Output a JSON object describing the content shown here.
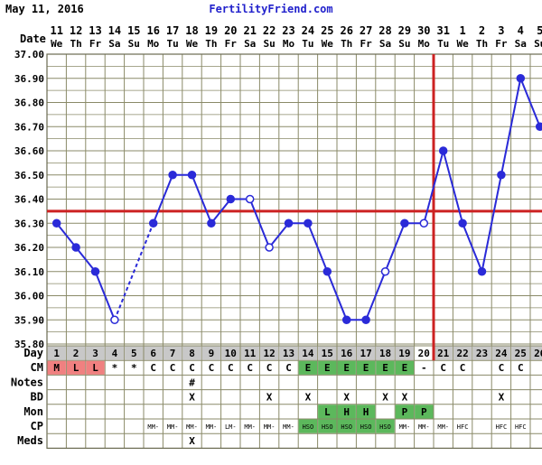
{
  "header": {
    "date": "May 11, 2016",
    "site": "FertilityFriend.com"
  },
  "colors": {
    "line": "#2a2ad8",
    "coverline": "#cc2222",
    "ovulation_line": "#cc2222",
    "menses": "#f08080",
    "egg_white": "#5cb85c",
    "grid": "#8a8a68",
    "bg": "#ffffff",
    "day_row": "#c8c8c8"
  },
  "chart_data": {
    "type": "line",
    "ylim": [
      35.8,
      37.0
    ],
    "yticks": [
      "37.00",
      "36.90",
      "36.80",
      "36.70",
      "36.60",
      "36.50",
      "36.40",
      "36.30",
      "36.20",
      "36.10",
      "36.00",
      "35.90",
      "35.80"
    ],
    "coverline": 36.35,
    "ovulation_day": 20,
    "dates": [
      {
        "num": "11",
        "dow": "We"
      },
      {
        "num": "12",
        "dow": "Th"
      },
      {
        "num": "13",
        "dow": "Fr"
      },
      {
        "num": "14",
        "dow": "Sa"
      },
      {
        "num": "15",
        "dow": "Su"
      },
      {
        "num": "16",
        "dow": "Mo"
      },
      {
        "num": "17",
        "dow": "Tu"
      },
      {
        "num": "18",
        "dow": "We"
      },
      {
        "num": "19",
        "dow": "Th"
      },
      {
        "num": "20",
        "dow": "Fr"
      },
      {
        "num": "21",
        "dow": "Sa"
      },
      {
        "num": "22",
        "dow": "Su"
      },
      {
        "num": "23",
        "dow": "Mo"
      },
      {
        "num": "24",
        "dow": "Tu"
      },
      {
        "num": "25",
        "dow": "We"
      },
      {
        "num": "26",
        "dow": "Th"
      },
      {
        "num": "27",
        "dow": "Fr"
      },
      {
        "num": "28",
        "dow": "Sa"
      },
      {
        "num": "29",
        "dow": "Su"
      },
      {
        "num": "30",
        "dow": "Mo"
      },
      {
        "num": "31",
        "dow": "Tu"
      },
      {
        "num": "1",
        "dow": "We"
      },
      {
        "num": "2",
        "dow": "Th"
      },
      {
        "num": "3",
        "dow": "Fr"
      },
      {
        "num": "4",
        "dow": "Sa"
      },
      {
        "num": "5",
        "dow": "Su"
      }
    ],
    "days": [
      1,
      2,
      3,
      4,
      5,
      6,
      7,
      8,
      9,
      10,
      11,
      12,
      13,
      14,
      15,
      16,
      17,
      18,
      19,
      20,
      21,
      22,
      23,
      24,
      25,
      26
    ],
    "temps": [
      {
        "day": 1,
        "value": 36.3,
        "open": false
      },
      {
        "day": 2,
        "value": 36.2,
        "open": false
      },
      {
        "day": 3,
        "value": 36.1,
        "open": false
      },
      {
        "day": 4,
        "value": 35.9,
        "open": true
      },
      {
        "day": 6,
        "value": 36.3,
        "open": false
      },
      {
        "day": 7,
        "value": 36.5,
        "open": false
      },
      {
        "day": 8,
        "value": 36.5,
        "open": false
      },
      {
        "day": 9,
        "value": 36.3,
        "open": false
      },
      {
        "day": 10,
        "value": 36.4,
        "open": false
      },
      {
        "day": 11,
        "value": 36.4,
        "open": true
      },
      {
        "day": 12,
        "value": 36.2,
        "open": true
      },
      {
        "day": 13,
        "value": 36.3,
        "open": false
      },
      {
        "day": 14,
        "value": 36.3,
        "open": false
      },
      {
        "day": 15,
        "value": 36.1,
        "open": false
      },
      {
        "day": 16,
        "value": 35.9,
        "open": false
      },
      {
        "day": 17,
        "value": 35.9,
        "open": false
      },
      {
        "day": 18,
        "value": 36.1,
        "open": true
      },
      {
        "day": 19,
        "value": 36.3,
        "open": false
      },
      {
        "day": 20,
        "value": 36.3,
        "open": true
      },
      {
        "day": 21,
        "value": 36.6,
        "open": false
      },
      {
        "day": 22,
        "value": 36.3,
        "open": false
      },
      {
        "day": 23,
        "value": 36.1,
        "open": false
      },
      {
        "day": 24,
        "value": 36.5,
        "open": false
      },
      {
        "day": 25,
        "value": 36.9,
        "open": false
      },
      {
        "day": 26,
        "value": 36.7,
        "open": false
      }
    ],
    "gap_from_day": 4,
    "gap_to_day": 6,
    "row_labels": {
      "day": "Day",
      "cm": "CM",
      "notes": "Notes",
      "bd": "BD",
      "mon": "Mon",
      "cp": "CP",
      "meds": "Meds",
      "date": "Date"
    },
    "rows": {
      "cm": [
        "M",
        "L",
        "L",
        "*",
        "*",
        "C",
        "C",
        "C",
        "C",
        "C",
        "C",
        "C",
        "C",
        "E",
        "E",
        "E",
        "E",
        "E",
        "E",
        "-",
        "C",
        "C",
        "",
        "C",
        "C",
        ""
      ],
      "notes": [
        "",
        "",
        "",
        "",
        "",
        "",
        "",
        "#",
        "",
        "",
        "",
        "",
        "",
        "",
        "",
        "",
        "",
        "",
        "",
        "",
        "",
        "",
        "",
        "",
        "",
        ""
      ],
      "bd": [
        "",
        "",
        "",
        "",
        "",
        "",
        "",
        "X",
        "",
        "",
        "",
        "X",
        "",
        "X",
        "",
        "X",
        "",
        "X",
        "X",
        "",
        "",
        "",
        "",
        "X",
        "",
        ""
      ],
      "mon": [
        "",
        "",
        "",
        "",
        "",
        "",
        "",
        "",
        "",
        "",
        "",
        "",
        "",
        "",
        "L",
        "H",
        "H",
        "",
        "P",
        "P",
        "",
        "",
        "",
        "",
        "",
        ""
      ],
      "cp": [
        "",
        "",
        "",
        "",
        "",
        "MM-",
        "MM-",
        "MM-",
        "MM-",
        "LM-",
        "MM-",
        "MM-",
        "MM-",
        "HSO",
        "HSO",
        "HSO",
        "HSO",
        "HSO",
        "MM-",
        "MM-",
        "MM-",
        "HFC",
        "",
        "HFC",
        "HFC",
        ""
      ],
      "meds": [
        "",
        "",
        "",
        "",
        "",
        "",
        "",
        "X",
        "",
        "",
        "",
        "",
        "",
        "",
        "",
        "",
        "",
        "",
        "",
        "",
        "",
        "",
        "",
        "",
        "",
        ""
      ]
    }
  }
}
